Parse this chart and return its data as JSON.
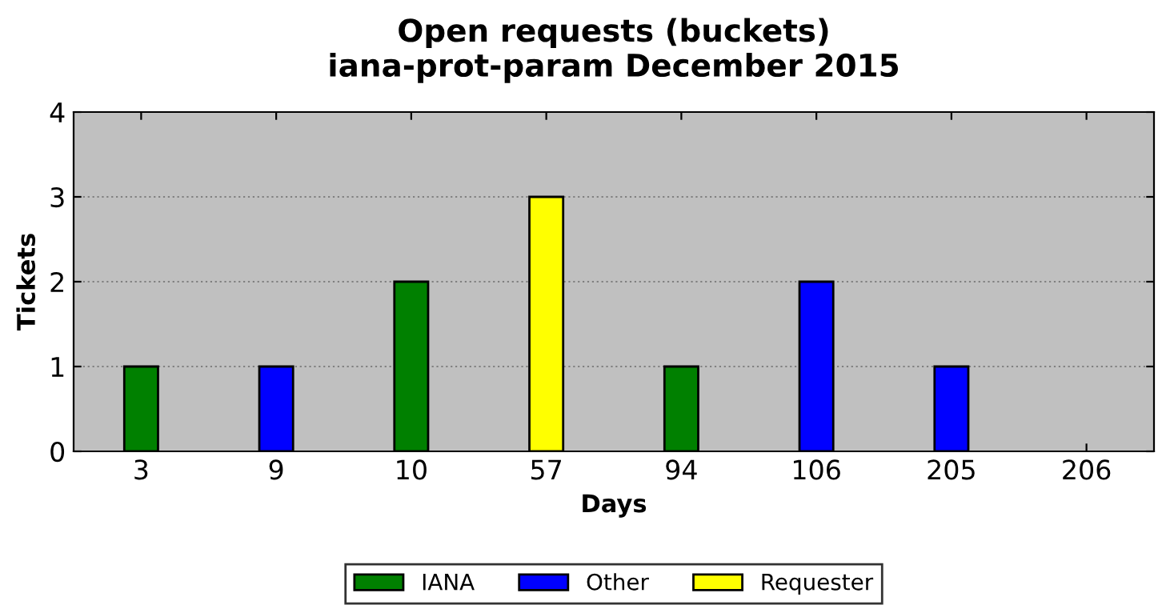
{
  "chart_data": {
    "type": "bar",
    "title": "Open requests (buckets)\niana-prot-param December 2015",
    "xlabel": "Days",
    "ylabel": "Tickets",
    "categories": [
      "3",
      "9",
      "10",
      "57",
      "94",
      "106",
      "205",
      "206"
    ],
    "series": [
      {
        "name": "IANA",
        "color": "#008000",
        "values": [
          1,
          null,
          2,
          null,
          1,
          null,
          null,
          null
        ]
      },
      {
        "name": "Other",
        "color": "#0000ff",
        "values": [
          null,
          1,
          null,
          null,
          null,
          2,
          1,
          null
        ]
      },
      {
        "name": "Requester",
        "color": "#ffff00",
        "values": [
          null,
          null,
          null,
          3,
          null,
          null,
          null,
          null
        ]
      }
    ],
    "ylim": [
      0,
      4
    ],
    "yticks": [
      0,
      1,
      2,
      3,
      4
    ],
    "grid": "y",
    "legend": "bottom"
  }
}
